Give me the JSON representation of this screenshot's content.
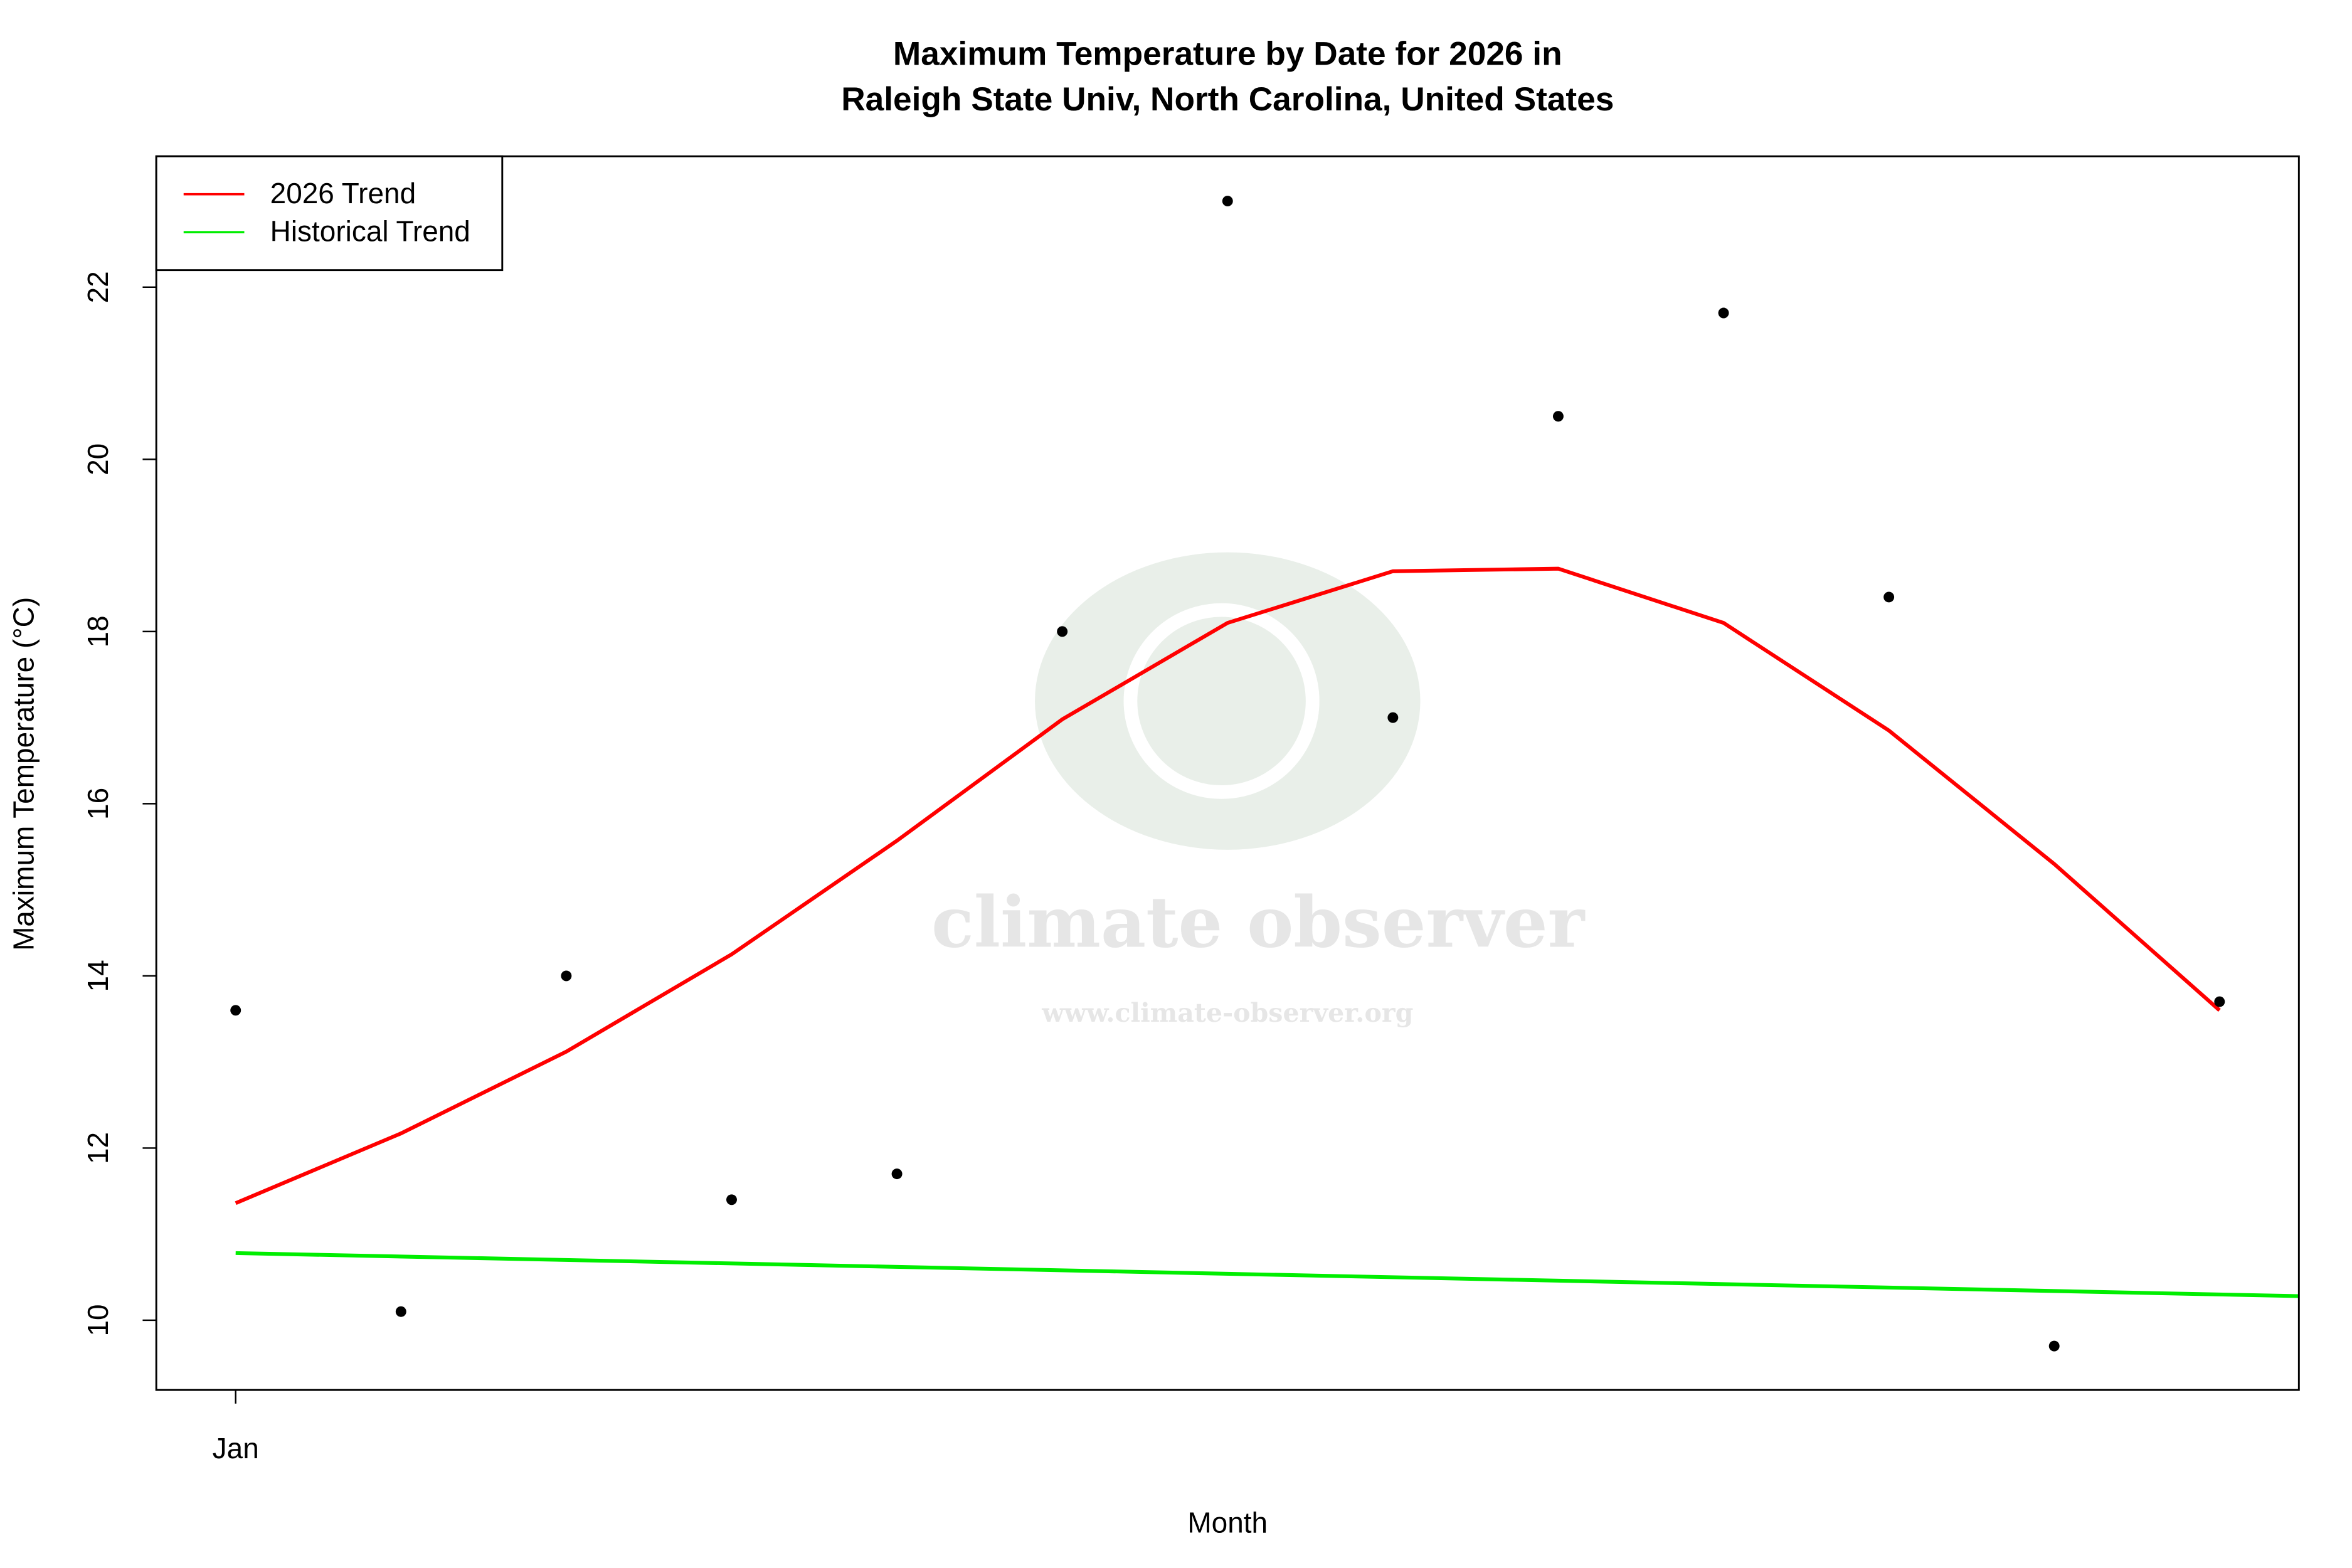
{
  "chart_data": {
    "type": "scatter",
    "title": [
      "Maximum Temperature by Date for 2026 in",
      "Raleigh State Univ, North Carolina, United States"
    ],
    "x_label": "Month",
    "y_label": "Maximum Temperature (°C)",
    "watermark": [
      "climate observer",
      "www.climate-observer.org"
    ],
    "xlim": [
      -0.48,
      12.48
    ],
    "xticks": [
      {
        "value": 0,
        "label": "Jan"
      }
    ],
    "ylim": [
      9.19,
      23.52
    ],
    "yticks": [
      10,
      12,
      14,
      16,
      18,
      20,
      22
    ],
    "legend": "top-left",
    "points": {
      "color": "#000000",
      "x": [
        0,
        1,
        2,
        3,
        4,
        5,
        6,
        7,
        8,
        9,
        10,
        11,
        12
      ],
      "values": [
        13.6,
        10.1,
        14.0,
        11.4,
        11.7,
        18.0,
        23.0,
        17.0,
        20.5,
        21.7,
        18.4,
        9.7,
        13.7
      ]
    },
    "series": [
      {
        "name": "2026 Trend",
        "color": "#ff0000",
        "x": [
          0,
          1,
          2,
          3,
          4,
          5,
          6,
          7,
          8,
          9,
          10,
          11,
          12
        ],
        "values": [
          11.36,
          12.17,
          13.12,
          14.25,
          15.57,
          16.98,
          18.1,
          18.7,
          18.73,
          18.1,
          16.85,
          15.3,
          13.6
        ]
      },
      {
        "name": "Historical Trend",
        "color": "#00ee00",
        "x": [
          0,
          12.48
        ],
        "values": [
          10.78,
          10.28
        ]
      }
    ]
  }
}
